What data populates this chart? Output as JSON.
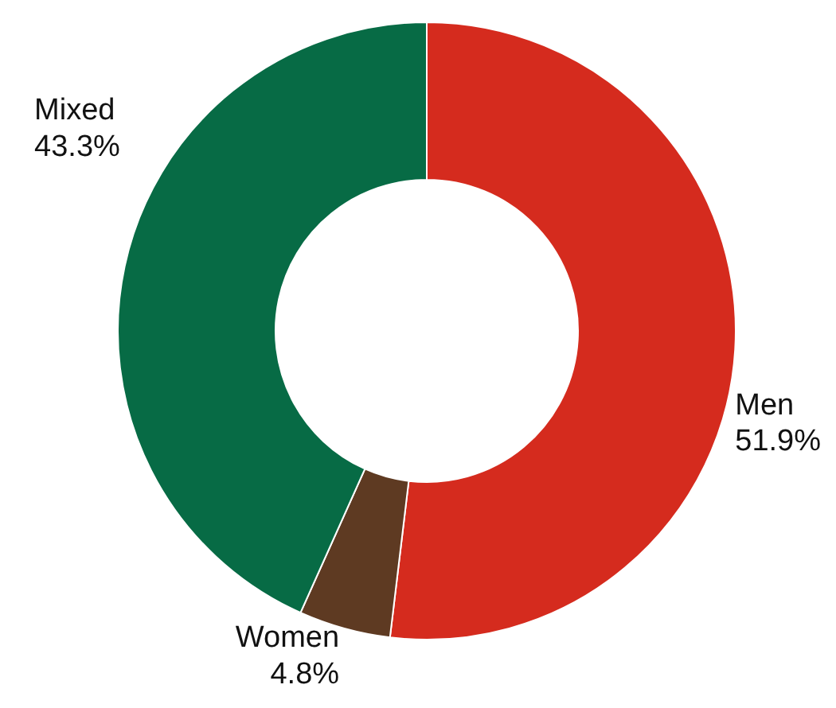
{
  "chart_data": {
    "type": "donut",
    "categories": [
      "Men",
      "Women",
      "Mixed"
    ],
    "values": [
      51.9,
      4.8,
      43.3
    ],
    "value_labels": [
      "51.9%",
      "4.8%",
      "43.3%"
    ],
    "colors": [
      "#d52b1e",
      "#5e3a22",
      "#076b45"
    ]
  }
}
